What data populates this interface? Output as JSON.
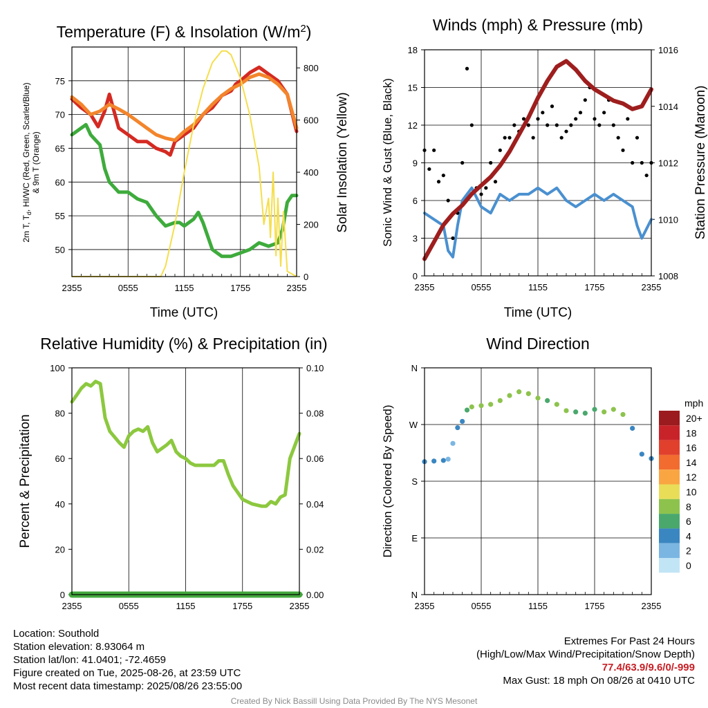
{
  "panels": {
    "temperature": {
      "title": "Temperature (F) & Insolation (W/m",
      "title_sup": "2",
      "title_close": ")",
      "ylabel_left_line1": "2m T, T",
      "ylabel_left_sub": "d",
      "ylabel_left_rest": ", HI/WC (Red, Green, Scarlet/Blue)",
      "ylabel_left_line2": "& 9m T (Orange)",
      "ylabel_right": "Solar Insolation (Yellow)",
      "xlabel": "Time (UTC)"
    },
    "winds": {
      "title": "Winds (mph) & Pressure (mb)",
      "ylabel_left": "Sonic Wind & Gust (Blue, Black)",
      "ylabel_right": "Station Pressure (Maroon)",
      "xlabel": "Time (UTC)"
    },
    "humidity": {
      "title": "Relative Humidity (%) & Precipitation (in)",
      "ylabel_left": "Percent & Precipitation"
    },
    "direction": {
      "title": "Wind Direction",
      "ylabel_left": "Direction (Colored By Speed)"
    }
  },
  "colorbar": {
    "unit": "mph",
    "labels": [
      "20+",
      "18",
      "16",
      "14",
      "12",
      "10",
      "8",
      "6",
      "4",
      "2",
      "0"
    ],
    "colors": [
      "#9b1b1e",
      "#c9232a",
      "#e0402c",
      "#f26b2f",
      "#f9a541",
      "#e9dd58",
      "#8dc34d",
      "#4aa86c",
      "#3a86c1",
      "#7bb6e2",
      "#c2e5f6"
    ]
  },
  "info": {
    "location": "Location: Southold",
    "elevation": "Station elevation: 8.93064 m",
    "latlon": "Station lat/lon: 41.0401; -72.4659",
    "created": "Figure created on Tue, 2025-08-26, at 23:59 UTC",
    "recent": "Most recent data timestamp: 2025/08/26 23:55:00",
    "extremes_title": "Extremes For Past 24 Hours",
    "extremes_desc": "(High/Low/Max Wind/Precipitation/Snow Depth)",
    "extremes_values": "77.4/63.9/9.6/0/-999",
    "max_gust": "Max Gust: 18 mph On 08/26 at 0410 UTC",
    "credit": "Created By Nick Bassill Using Data Provided By The NYS Mesonet"
  },
  "chart_data": [
    {
      "type": "line",
      "title": "Temperature (F) & Insolation (W/m2)",
      "xlabel": "Time (UTC)",
      "ylabel": "2m T, Td, HI/WC (Red, Green, Scarlet/Blue) & 9m T (Orange)",
      "y2label": "Solar Insolation (Yellow)",
      "xticks": [
        "2355",
        "0555",
        "1155",
        "1755",
        "2355"
      ],
      "xlim": [
        0,
        24
      ],
      "ylim": [
        46,
        80
      ],
      "yticks": [
        50,
        55,
        60,
        65,
        70,
        75
      ],
      "y2lim": [
        0,
        880
      ],
      "y2ticks": [
        0,
        200,
        400,
        600,
        800
      ],
      "grid": true,
      "series": [
        {
          "name": "2m T",
          "color": "#d42a22",
          "axis": "left",
          "x": [
            0,
            1,
            2,
            2.8,
            3.5,
            4,
            5,
            6,
            7,
            8,
            9,
            10,
            10.5,
            11,
            12,
            13,
            14,
            15,
            16,
            17,
            17.5,
            18,
            19,
            20,
            21,
            22,
            23,
            24
          ],
          "y": [
            72.3,
            71,
            70,
            68.2,
            70.5,
            73,
            68,
            67,
            66,
            66,
            65,
            64.5,
            64,
            66,
            67,
            68,
            70,
            71,
            72.8,
            73.5,
            74.5,
            75,
            76.2,
            77,
            76,
            75,
            73,
            67.5
          ]
        },
        {
          "name": "9m T",
          "color": "#f3852c",
          "axis": "left",
          "x": [
            0,
            1,
            2,
            3,
            4,
            5,
            6,
            7,
            8,
            9,
            10,
            11,
            12,
            13,
            14,
            15,
            16,
            17,
            18,
            19,
            20,
            21,
            22,
            23,
            24
          ],
          "y": [
            72.6,
            71.5,
            70,
            70.5,
            71.5,
            70.8,
            70,
            69,
            68,
            67,
            66.5,
            66.2,
            67.5,
            68.5,
            70,
            71.5,
            72.8,
            73.8,
            74.5,
            75.5,
            76,
            75.5,
            74.5,
            73,
            68
          ]
        },
        {
          "name": "Td",
          "color": "#3eab3c",
          "axis": "left",
          "x": [
            0,
            1,
            1.5,
            2,
            3,
            3.5,
            4,
            5,
            6,
            7,
            8,
            9,
            10,
            11,
            11.5,
            12,
            13,
            13.5,
            14,
            15,
            16,
            17,
            18,
            19,
            20,
            21,
            22,
            22.5,
            23,
            23.5,
            24
          ],
          "y": [
            67,
            68,
            68.5,
            67,
            65.5,
            62,
            60,
            58.5,
            58.5,
            57.5,
            57,
            55,
            53.5,
            54,
            54,
            53.5,
            54.5,
            55.5,
            54,
            50,
            49,
            49,
            49.5,
            50,
            51,
            50.5,
            51,
            53,
            57,
            58,
            58
          ]
        },
        {
          "name": "Solar Insolation",
          "color": "#f5de4c",
          "axis": "right",
          "x": [
            0,
            9.5,
            10,
            11,
            12,
            13,
            14,
            15,
            16,
            16.5,
            17,
            18,
            19,
            20,
            20.5,
            21,
            21.2,
            21.5,
            21.8,
            22,
            22.3,
            22.6,
            23,
            24
          ],
          "y": [
            0,
            0,
            40,
            200,
            400,
            580,
            720,
            820,
            865,
            865,
            850,
            760,
            620,
            420,
            200,
            300,
            150,
            400,
            80,
            300,
            40,
            250,
            20,
            0
          ]
        }
      ]
    },
    {
      "type": "line",
      "title": "Winds (mph) & Pressure (mb)",
      "xlabel": "Time (UTC)",
      "ylabel": "Sonic Wind & Gust (Blue, Black)",
      "y2label": "Station Pressure (Maroon)",
      "xticks": [
        "2355",
        "0555",
        "1155",
        "1755",
        "2355"
      ],
      "xlim": [
        0,
        24
      ],
      "ylim": [
        0,
        18
      ],
      "yticks": [
        0,
        3,
        6,
        9,
        12,
        15,
        18
      ],
      "y2lim": [
        1008,
        1016
      ],
      "y2ticks": [
        1008,
        1010,
        1012,
        1014,
        1016
      ],
      "grid": true,
      "series": [
        {
          "name": "Sonic Wind",
          "color": "#4a90d0",
          "axis": "left",
          "x": [
            0,
            1,
            2,
            2.5,
            3,
            3.5,
            4,
            5,
            6,
            7,
            8,
            9,
            10,
            11,
            12,
            13,
            14,
            15,
            16,
            17,
            18,
            19,
            20,
            21,
            22,
            22.5,
            23,
            24
          ],
          "y": [
            5,
            4.5,
            4,
            2,
            1.5,
            4,
            6,
            7,
            5.5,
            5,
            6.5,
            6,
            6.5,
            6.5,
            7,
            6.5,
            7,
            6,
            5.5,
            6,
            6.5,
            6,
            6.5,
            6,
            5.5,
            4,
            3,
            4.5
          ]
        },
        {
          "name": "Gust",
          "color": "#000000",
          "axis": "left",
          "x": [
            0,
            0.5,
            1,
            1.5,
            2,
            2.5,
            3,
            3.5,
            4,
            4.5,
            5,
            5.5,
            6,
            6.5,
            7,
            7.5,
            8,
            8.5,
            9,
            9.5,
            10,
            10.5,
            11,
            11.5,
            12,
            12.5,
            13,
            13.5,
            14,
            14.5,
            15,
            15.5,
            16,
            16.5,
            17,
            17.5,
            18,
            18.5,
            19,
            19.5,
            20,
            20.5,
            21,
            21.5,
            22,
            22.5,
            23,
            23.5,
            24
          ],
          "y": [
            10,
            8.5,
            10,
            7.5,
            8,
            6,
            3,
            5,
            9,
            16.5,
            12,
            7,
            6.5,
            7,
            9,
            7.5,
            10,
            11,
            11,
            12,
            11.5,
            12.5,
            12,
            11,
            12.5,
            13,
            12,
            13.5,
            12,
            11,
            11.5,
            12,
            12.5,
            13,
            14,
            15,
            12.5,
            12,
            13,
            14,
            12,
            11,
            10,
            12.5,
            9,
            11,
            9,
            8,
            9
          ]
        },
        {
          "name": "Station Pressure",
          "color": "#9e1e1e",
          "axis": "right",
          "x": [
            0,
            1,
            2,
            3,
            4,
            5,
            6,
            7,
            8,
            9,
            10,
            11,
            12,
            13,
            14,
            15,
            16,
            17,
            18,
            19,
            20,
            21,
            22,
            23,
            24
          ],
          "y": [
            1008.6,
            1009.2,
            1009.8,
            1010.2,
            1010.5,
            1010.9,
            1011.2,
            1011.5,
            1011.9,
            1012.4,
            1013,
            1013.6,
            1014.3,
            1014.9,
            1015.4,
            1015.6,
            1015.3,
            1014.9,
            1014.6,
            1014.4,
            1014.2,
            1014.1,
            1013.9,
            1014,
            1014.6
          ]
        }
      ]
    },
    {
      "type": "line",
      "title": "Relative Humidity (%) & Precipitation (in)",
      "ylabel": "Percent & Precipitation",
      "xticks": [
        "2355",
        "0555",
        "1155",
        "1755",
        "2355"
      ],
      "xlim": [
        0,
        24
      ],
      "ylim": [
        0,
        100
      ],
      "yticks": [
        0,
        20,
        40,
        60,
        80,
        100
      ],
      "y2lim": [
        0,
        0.1
      ],
      "y2ticks": [
        "0.00",
        "0.02",
        "0.04",
        "0.06",
        "0.08",
        "0.10"
      ],
      "grid": true,
      "series": [
        {
          "name": "Relative Humidity",
          "color": "#8cc83f",
          "axis": "left",
          "x": [
            0,
            0.5,
            1,
            1.5,
            2,
            2.5,
            3,
            3.5,
            4,
            5,
            5.5,
            6,
            6.5,
            7,
            7.5,
            8,
            8.5,
            9,
            10,
            10.5,
            11,
            11.5,
            12,
            12.5,
            13,
            14,
            15,
            15.5,
            16,
            16.5,
            17,
            18,
            19,
            20,
            20.5,
            21,
            21.5,
            22,
            22.5,
            23,
            24
          ],
          "y": [
            85,
            88,
            91,
            93,
            92,
            94,
            93,
            78,
            72,
            67,
            65,
            70,
            72,
            73,
            72,
            74,
            67,
            63,
            66,
            68,
            63,
            61,
            60,
            58,
            57,
            57,
            57,
            59,
            59,
            53,
            48,
            42,
            40,
            39,
            39,
            41,
            40,
            43,
            44,
            60,
            71
          ]
        },
        {
          "name": "Precipitation",
          "color": "#43a83e",
          "axis": "right",
          "x": [
            0,
            24
          ],
          "y": [
            0,
            0
          ]
        }
      ]
    },
    {
      "type": "scatter",
      "title": "Wind Direction",
      "ylabel": "Direction (Colored By Speed)",
      "xticks": [
        "2355",
        "0555",
        "1155",
        "1755",
        "2355"
      ],
      "yticks": [
        "N",
        "E",
        "S",
        "W",
        "N"
      ],
      "xlim": [
        0,
        24
      ],
      "ylim": [
        0,
        360
      ],
      "legend": "right",
      "grid": true,
      "points": {
        "x": [
          0,
          1,
          2,
          2.5,
          3,
          3.5,
          4,
          4.5,
          5,
          6,
          7,
          8,
          9,
          10,
          11,
          12,
          13,
          14,
          15,
          16,
          17,
          18,
          19,
          20,
          21,
          22,
          23,
          24
        ],
        "y": [
          211,
          212,
          213,
          215,
          240,
          265,
          275,
          293,
          298,
          300,
          302,
          308,
          316,
          322,
          319,
          312,
          308,
          302,
          292,
          290,
          288,
          294,
          290,
          294,
          286,
          264,
          223,
          216
        ],
        "speed": [
          3,
          3,
          3,
          2,
          2,
          3,
          4,
          6,
          7,
          8,
          8,
          7,
          8,
          8,
          7,
          7,
          6,
          7,
          7,
          5,
          6,
          6,
          7,
          8,
          7,
          4,
          3,
          3
        ]
      }
    }
  ]
}
